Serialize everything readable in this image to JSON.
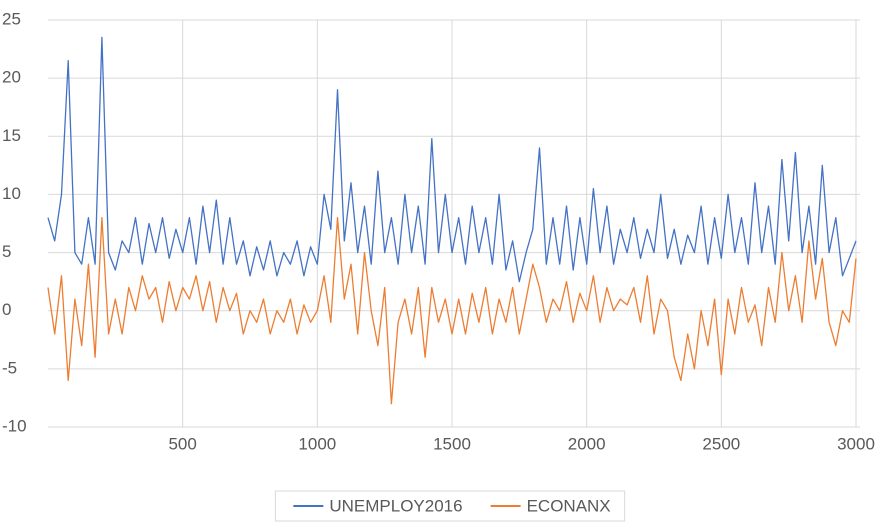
{
  "chart_data": {
    "type": "line",
    "x": [
      0,
      25,
      50,
      75,
      100,
      125,
      150,
      175,
      200,
      225,
      250,
      275,
      300,
      325,
      350,
      375,
      400,
      425,
      450,
      475,
      500,
      525,
      550,
      575,
      600,
      625,
      650,
      675,
      700,
      725,
      750,
      775,
      800,
      825,
      850,
      875,
      900,
      925,
      950,
      975,
      1000,
      1025,
      1050,
      1075,
      1100,
      1125,
      1150,
      1175,
      1200,
      1225,
      1250,
      1275,
      1300,
      1325,
      1350,
      1375,
      1400,
      1425,
      1450,
      1475,
      1500,
      1525,
      1550,
      1575,
      1600,
      1625,
      1650,
      1675,
      1700,
      1725,
      1750,
      1775,
      1800,
      1825,
      1850,
      1875,
      1900,
      1925,
      1950,
      1975,
      2000,
      2025,
      2050,
      2075,
      2100,
      2125,
      2150,
      2175,
      2200,
      2225,
      2250,
      2275,
      2300,
      2325,
      2350,
      2375,
      2400,
      2425,
      2450,
      2475,
      2500,
      2525,
      2550,
      2575,
      2600,
      2625,
      2650,
      2675,
      2700,
      2725,
      2750,
      2775,
      2800,
      2825,
      2850,
      2875,
      2900,
      2925,
      2950,
      2975,
      3000
    ],
    "series": [
      {
        "name": "UNEMPLOY2016",
        "color": "#4472c4",
        "values": [
          8,
          6,
          10,
          21.5,
          5,
          4,
          8,
          4,
          23.5,
          5,
          3.5,
          6,
          5,
          8,
          4,
          7.5,
          5,
          8,
          4.5,
          7,
          5,
          8,
          4,
          9,
          5,
          9.5,
          4,
          8,
          4,
          6,
          3,
          5.5,
          3.5,
          6,
          3,
          5,
          4,
          6,
          3,
          5.5,
          4,
          10,
          7,
          19,
          6,
          11,
          5,
          9,
          4,
          12,
          5,
          8,
          4,
          10,
          5,
          9,
          4,
          14.8,
          5,
          10,
          5,
          8,
          4,
          9,
          5,
          8,
          4,
          10,
          3.5,
          6,
          2.5,
          5,
          7,
          14,
          4,
          8,
          4,
          9,
          3.5,
          8,
          4,
          10.5,
          5,
          9,
          4,
          7,
          5,
          8,
          4.5,
          7,
          5,
          10,
          4.5,
          7,
          4,
          6.5,
          5,
          9,
          4,
          8,
          4.5,
          10,
          5,
          8,
          4,
          11,
          5,
          9,
          4,
          13,
          6,
          13.6,
          5,
          9,
          4,
          12.5,
          5,
          8,
          3,
          4.5,
          6
        ]
      },
      {
        "name": "ECONANX",
        "color": "#ed7d31",
        "values": [
          2,
          -2,
          3,
          -6,
          1,
          -3,
          4,
          -4,
          8,
          -2,
          1,
          -2,
          2,
          0,
          3,
          1,
          2,
          -1,
          2.5,
          0,
          2,
          1,
          3,
          0,
          2.5,
          -1,
          2,
          0,
          1.5,
          -2,
          0,
          -1,
          1,
          -2,
          0,
          -1,
          1,
          -2,
          0.5,
          -1,
          0,
          3,
          -1,
          8,
          1,
          4,
          -2,
          5,
          0,
          -3,
          2,
          -8,
          -1,
          1,
          -2,
          2,
          -4,
          2,
          -1,
          1,
          -2,
          1,
          -2,
          1.5,
          -1,
          2,
          -2,
          1,
          -1,
          2,
          -2,
          1,
          4,
          2,
          -1,
          1,
          0,
          2.5,
          -1,
          1.5,
          0,
          3,
          -1,
          2,
          0,
          1,
          0.5,
          2,
          -1,
          3,
          -2,
          1,
          0,
          -4,
          -6,
          -2,
          -5,
          0,
          -3,
          1,
          -5.5,
          1,
          -2,
          2,
          -1,
          0.5,
          -3,
          2,
          -1,
          5,
          0,
          3,
          -1,
          6,
          1,
          4.5,
          -1,
          -3,
          0,
          -1,
          4.5
        ]
      }
    ],
    "xlim": [
      0,
      3000
    ],
    "xticks": [
      500,
      1000,
      1500,
      2000,
      2500,
      3000
    ],
    "ylim": [
      -10,
      25
    ],
    "yticks": [
      -10,
      -5,
      0,
      5,
      10,
      15,
      20,
      25
    ],
    "grid": true,
    "legend": "bottom"
  }
}
